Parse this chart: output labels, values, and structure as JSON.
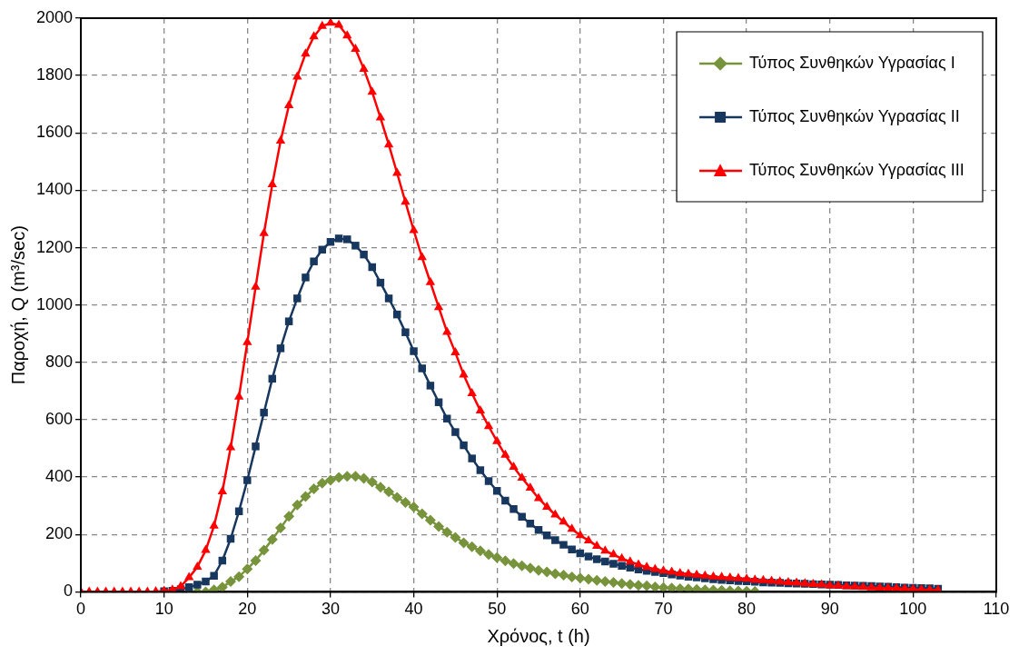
{
  "chart_data": {
    "type": "line",
    "xlabel": "Χρόνος, t (h)",
    "ylabel": "Παροχή, Q (m³/sec)",
    "x": [
      0,
      1,
      2,
      3,
      4,
      5,
      6,
      7,
      8,
      9,
      10,
      11,
      12,
      13,
      14,
      15,
      16,
      17,
      18,
      19,
      20,
      21,
      22,
      23,
      24,
      25,
      26,
      27,
      28,
      29,
      30,
      31,
      32,
      33,
      34,
      35,
      36,
      37,
      38,
      39,
      40,
      41,
      42,
      43,
      44,
      45,
      46,
      47,
      48,
      49,
      50,
      51,
      52,
      53,
      54,
      55,
      56,
      57,
      58,
      59,
      60,
      61,
      62,
      63,
      64,
      65,
      66,
      67,
      68,
      69,
      70,
      71,
      72,
      73,
      74,
      75,
      76,
      77,
      78,
      79,
      80,
      81,
      82,
      83,
      84,
      85,
      86,
      87,
      88,
      89,
      90,
      91,
      92,
      93,
      94,
      95,
      96,
      97,
      98,
      99,
      100,
      101,
      102,
      103
    ],
    "series": [
      {
        "name": "Τύπος Συνθηκών Υγρασίας Ι",
        "color": "#77933c",
        "marker": "diamond",
        "values": [
          null,
          null,
          null,
          null,
          null,
          null,
          null,
          null,
          null,
          null,
          null,
          null,
          null,
          0,
          0,
          0,
          7,
          16,
          36,
          53,
          80,
          109,
          145,
          183,
          223,
          263,
          303,
          332,
          359,
          379,
          389,
          399,
          403,
          403,
          396,
          383,
          365,
          349,
          329,
          312,
          296,
          272,
          250,
          228,
          208,
          190,
          171,
          157,
          143,
          130,
          119,
          108,
          99,
          91,
          83,
          75,
          69,
          63,
          58,
          52,
          48,
          44,
          40,
          36,
          33,
          29,
          26,
          23,
          21,
          17,
          15,
          13,
          11,
          10,
          8,
          7,
          6,
          5,
          4,
          3,
          2,
          1,
          null,
          null,
          null,
          null,
          null,
          null,
          null,
          null,
          null,
          null,
          null,
          null,
          null,
          null,
          null,
          null,
          null,
          null,
          null,
          null,
          null,
          null
        ]
      },
      {
        "name": "Τύπος Συνθηκών Υγρασίας ΙΙ",
        "color": "#17375e",
        "marker": "square",
        "values": [
          null,
          null,
          null,
          null,
          null,
          null,
          null,
          null,
          null,
          null,
          2,
          4,
          9,
          16,
          25,
          36,
          56,
          109,
          185,
          281,
          389,
          507,
          625,
          743,
          849,
          943,
          1023,
          1096,
          1152,
          1193,
          1220,
          1232,
          1229,
          1207,
          1176,
          1132,
          1078,
          1023,
          967,
          905,
          839,
          779,
          719,
          661,
          604,
          557,
          511,
          465,
          424,
          386,
          352,
          318,
          289,
          262,
          238,
          216,
          197,
          180,
          164,
          148,
          134,
          123,
          114,
          106,
          98,
          91,
          84,
          78,
          73,
          69,
          65,
          61,
          57,
          53,
          50,
          47,
          44,
          42,
          40,
          38,
          37,
          35,
          33,
          32,
          31,
          30,
          29,
          28,
          27,
          26,
          25,
          24,
          23,
          22,
          21,
          20,
          19,
          18,
          16,
          15,
          14,
          13,
          12,
          11
        ]
      },
      {
        "name": "Τύπος Συνθηκών Υγρασίας ΙΙΙ",
        "color": "#ff0000",
        "marker": "triangle",
        "values": [
          0,
          0,
          0,
          0,
          0,
          0,
          0,
          0,
          0,
          1,
          3,
          7,
          19,
          50,
          87,
          145,
          230,
          350,
          503,
          680,
          870,
          1063,
          1250,
          1420,
          1572,
          1696,
          1796,
          1876,
          1936,
          1972,
          1983,
          1976,
          1939,
          1892,
          1823,
          1743,
          1653,
          1559,
          1460,
          1359,
          1260,
          1166,
          1079,
          992,
          906,
          834,
          757,
          692,
          632,
          577,
          525,
          477,
          435,
          397,
          362,
          326,
          296,
          269,
          244,
          219,
          197,
          179,
          160,
          143,
          130,
          116,
          105,
          95,
          86,
          79,
          73,
          69,
          65,
          62,
          59,
          56,
          53,
          51,
          49,
          47,
          45,
          42,
          40,
          38,
          35,
          33,
          31,
          29,
          27,
          25,
          22,
          21,
          19,
          18,
          16,
          15,
          14,
          13,
          12,
          11,
          9,
          8,
          7,
          6
        ]
      }
    ],
    "xlim": [
      0,
      110
    ],
    "xticks": [
      0,
      10,
      20,
      30,
      40,
      50,
      60,
      70,
      80,
      90,
      100,
      110
    ],
    "ylim": [
      0,
      2000
    ],
    "yticks": [
      0,
      200,
      400,
      600,
      800,
      1000,
      1200,
      1400,
      1600,
      1800,
      2000
    ],
    "grid": true,
    "legend": "top right",
    "line_style": "solid"
  }
}
